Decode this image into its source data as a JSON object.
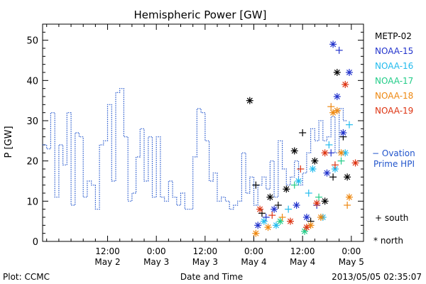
{
  "chart_data": {
    "type": "scatter",
    "title": "Hemispheric Power [GW]",
    "ylabel": "P [GW]",
    "xlabel": "Date and Time",
    "ylim": [
      0,
      54
    ],
    "yticks": [
      0,
      10,
      20,
      30,
      40,
      50
    ],
    "xlim": [
      "2013-05-01T20:00",
      "2013-05-05T03:00"
    ],
    "xticks": [
      {
        "at": "2013-05-02T12:00",
        "time": "12:00",
        "date": "May 2"
      },
      {
        "at": "2013-05-03T00:00",
        "time": "0:00",
        "date": "May 3"
      },
      {
        "at": "2013-05-03T12:00",
        "time": "12:00",
        "date": "May 3"
      },
      {
        "at": "2013-05-04T00:00",
        "time": "0:00",
        "date": "May 4"
      },
      {
        "at": "2013-05-04T12:00",
        "time": "12:00",
        "date": "May 4"
      },
      {
        "at": "2013-05-05T00:00",
        "time": "0:00",
        "date": "May 5"
      }
    ],
    "ovation": {
      "label_line1": "− Ovation",
      "label_line2": "Prime HPI",
      "color": "#2255cc",
      "step_hours": 1,
      "start": "2013-05-01T20:00",
      "values": [
        24,
        23,
        32,
        11,
        24,
        19,
        32,
        9,
        27,
        26,
        11,
        15,
        14,
        8,
        24,
        25,
        34,
        15,
        37,
        38,
        26,
        10,
        12,
        21,
        28,
        15,
        26,
        11,
        26,
        11,
        10,
        15,
        11,
        9,
        12,
        8,
        8,
        21,
        33,
        32,
        25,
        15,
        17,
        10,
        11,
        10,
        8,
        9,
        10,
        22,
        12,
        16,
        9,
        14,
        16,
        13,
        20,
        11,
        25,
        18,
        14,
        16,
        20,
        14,
        17,
        22,
        28,
        25,
        30,
        25,
        26,
        31,
        22,
        33,
        30
      ]
    },
    "series": [
      {
        "name": "METP-02",
        "color": "#000000",
        "points": [
          {
            "t": "2013-05-03T23:00",
            "v": 35,
            "type": "north"
          },
          {
            "t": "2013-05-04T00:30",
            "v": 14,
            "type": "south"
          },
          {
            "t": "2013-05-04T02:00",
            "v": 7,
            "type": "south"
          },
          {
            "t": "2013-05-04T04:00",
            "v": 11,
            "type": "north"
          },
          {
            "t": "2013-05-04T06:00",
            "v": 9,
            "type": "south"
          },
          {
            "t": "2013-05-04T08:00",
            "v": 13,
            "type": "north"
          },
          {
            "t": "2013-05-04T10:00",
            "v": 22.5,
            "type": "north"
          },
          {
            "t": "2013-05-04T12:00",
            "v": 27,
            "type": "south"
          },
          {
            "t": "2013-05-04T14:00",
            "v": 5,
            "type": "south"
          },
          {
            "t": "2013-05-04T15:00",
            "v": 20,
            "type": "north"
          },
          {
            "t": "2013-05-04T17:30",
            "v": 10,
            "type": "north"
          },
          {
            "t": "2013-05-04T19:30",
            "v": 16,
            "type": "south"
          },
          {
            "t": "2013-05-04T20:30",
            "v": 42,
            "type": "north"
          },
          {
            "t": "2013-05-04T22:00",
            "v": 26,
            "type": "south"
          },
          {
            "t": "2013-05-04T23:00",
            "v": 16,
            "type": "north"
          }
        ]
      },
      {
        "name": "NOAA-15",
        "color": "#2233cc",
        "points": [
          {
            "t": "2013-05-04T01:00",
            "v": 4,
            "type": "north"
          },
          {
            "t": "2013-05-04T03:00",
            "v": 6,
            "type": "south"
          },
          {
            "t": "2013-05-04T05:00",
            "v": 8,
            "type": "north"
          },
          {
            "t": "2013-05-04T10:30",
            "v": 9,
            "type": "north"
          },
          {
            "t": "2013-05-04T13:00",
            "v": 6,
            "type": "north"
          },
          {
            "t": "2013-05-04T15:30",
            "v": 9,
            "type": "south"
          },
          {
            "t": "2013-05-04T18:00",
            "v": 17,
            "type": "north"
          },
          {
            "t": "2013-05-04T19:30",
            "v": 49,
            "type": "north"
          },
          {
            "t": "2013-05-04T21:00",
            "v": 47.5,
            "type": "south"
          },
          {
            "t": "2013-05-04T20:30",
            "v": 36,
            "type": "north"
          },
          {
            "t": "2013-05-04T23:30",
            "v": 42,
            "type": "north"
          },
          {
            "t": "2013-05-04T22:00",
            "v": 27,
            "type": "north"
          },
          {
            "t": "2013-05-04T19:00",
            "v": 22,
            "type": "south"
          }
        ]
      },
      {
        "name": "NOAA-16",
        "color": "#22bbee",
        "points": [
          {
            "t": "2013-05-04T02:30",
            "v": 5,
            "type": "north"
          },
          {
            "t": "2013-05-04T05:30",
            "v": 4,
            "type": "north"
          },
          {
            "t": "2013-05-04T08:30",
            "v": 8,
            "type": "south"
          },
          {
            "t": "2013-05-04T11:00",
            "v": 15,
            "type": "north"
          },
          {
            "t": "2013-05-04T14:30",
            "v": 18,
            "type": "north"
          },
          {
            "t": "2013-05-04T17:00",
            "v": 6,
            "type": "north"
          },
          {
            "t": "2013-05-04T20:00",
            "v": 18,
            "type": "north"
          },
          {
            "t": "2013-05-04T22:30",
            "v": 22,
            "type": "north"
          },
          {
            "t": "2013-05-04T13:30",
            "v": 12,
            "type": "south"
          },
          {
            "t": "2013-05-04T18:30",
            "v": 24,
            "type": "south"
          },
          {
            "t": "2013-05-04T23:30",
            "v": 29,
            "type": "south"
          }
        ]
      },
      {
        "name": "NOAA-17",
        "color": "#22cc88",
        "points": [
          {
            "t": "2013-05-04T06:30",
            "v": 5,
            "type": "north"
          },
          {
            "t": "2013-05-04T10:00",
            "v": 14,
            "type": "south"
          },
          {
            "t": "2013-05-04T12:30",
            "v": 2.5,
            "type": "north"
          },
          {
            "t": "2013-05-04T16:00",
            "v": 11,
            "type": "south"
          },
          {
            "t": "2013-05-04T21:30",
            "v": 20,
            "type": "south"
          }
        ]
      },
      {
        "name": "NOAA-18",
        "color": "#ee8811",
        "points": [
          {
            "t": "2013-05-04T00:30",
            "v": 2,
            "type": "north"
          },
          {
            "t": "2013-05-04T03:30",
            "v": 3.5,
            "type": "north"
          },
          {
            "t": "2013-05-04T07:00",
            "v": 6,
            "type": "south"
          },
          {
            "t": "2013-05-04T14:00",
            "v": 4,
            "type": "north"
          },
          {
            "t": "2013-05-04T16:30",
            "v": 6,
            "type": "north"
          },
          {
            "t": "2013-05-04T19:00",
            "v": 33.5,
            "type": "south"
          },
          {
            "t": "2013-05-04T20:30",
            "v": 32.5,
            "type": "north"
          },
          {
            "t": "2013-05-04T19:30",
            "v": 32,
            "type": "north"
          },
          {
            "t": "2013-05-04T21:30",
            "v": 22,
            "type": "north"
          },
          {
            "t": "2013-05-04T23:00",
            "v": 9,
            "type": "south"
          },
          {
            "t": "2013-05-04T23:30",
            "v": 11,
            "type": "north"
          }
        ]
      },
      {
        "name": "NOAA-19",
        "color": "#dd3311",
        "points": [
          {
            "t": "2013-05-04T01:30",
            "v": 8,
            "type": "north"
          },
          {
            "t": "2013-05-04T04:30",
            "v": 6.5,
            "type": "south"
          },
          {
            "t": "2013-05-04T09:00",
            "v": 5,
            "type": "north"
          },
          {
            "t": "2013-05-04T11:30",
            "v": 18,
            "type": "south"
          },
          {
            "t": "2013-05-04T13:00",
            "v": 3.5,
            "type": "north"
          },
          {
            "t": "2013-05-04T17:30",
            "v": 22,
            "type": "north"
          },
          {
            "t": "2013-05-04T20:00",
            "v": 19,
            "type": "south"
          },
          {
            "t": "2013-05-04T22:30",
            "v": 39,
            "type": "north"
          },
          {
            "t": "2013-05-05T01:00",
            "v": 19.5,
            "type": "north"
          },
          {
            "t": "2013-05-04T15:30",
            "v": 9.5,
            "type": "north"
          }
        ]
      }
    ],
    "markers_legend": {
      "south": "+ south",
      "north": "* north"
    }
  },
  "footer": {
    "plot_credit": "Plot: CCMC",
    "timestamp": "2013/05/05 02:35:07"
  }
}
